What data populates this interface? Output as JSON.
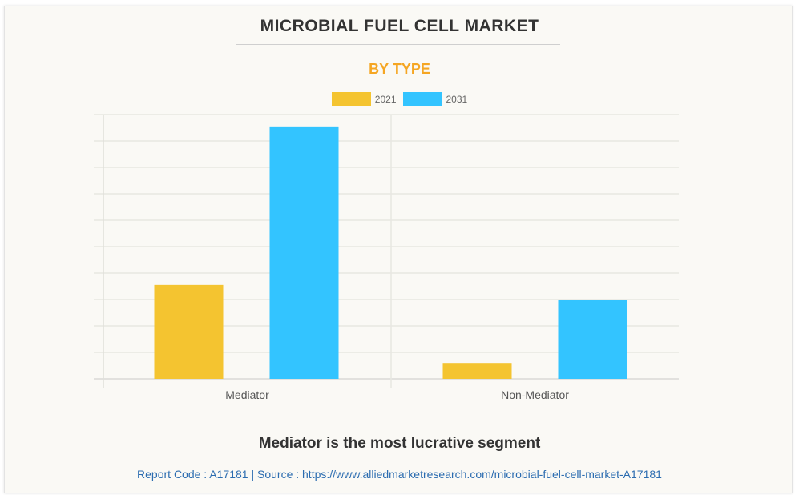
{
  "chart_data": {
    "type": "bar",
    "title": "MICROBIAL FUEL CELL MARKET",
    "subtitle": "BY TYPE",
    "categories": [
      "Mediator",
      "Non-Mediator"
    ],
    "series": [
      {
        "name": "2021",
        "color": "#f4c430",
        "values": [
          3.55,
          0.6
        ]
      },
      {
        "name": "2031",
        "color": "#33c4ff",
        "values": [
          9.55,
          3.0
        ]
      }
    ],
    "xlabel": "",
    "ylabel": "",
    "ylim": [
      0,
      9
    ],
    "y_tick_labels_visible": false,
    "grid": true,
    "gridline_count": 10,
    "legend_position": "top-center"
  },
  "header": {
    "title": "MICROBIAL FUEL CELL MARKET",
    "subtitle": "BY TYPE"
  },
  "legend": [
    {
      "label": "2021",
      "color": "#f4c430"
    },
    {
      "label": "2031",
      "color": "#33c4ff"
    }
  ],
  "footer": {
    "headline": "Mediator is the most lucrative segment",
    "source": "Report Code : A17181  |  Source : https://www.alliedmarketresearch.com/microbial-fuel-cell-market-A17181"
  },
  "colors": {
    "title": "#333333",
    "subtitle": "#f5a623",
    "source_link": "#2b6cb0"
  }
}
